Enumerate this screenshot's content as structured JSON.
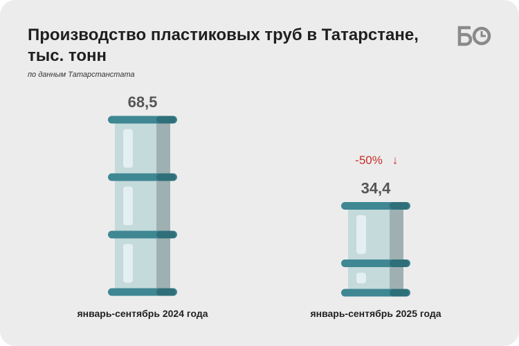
{
  "header": {
    "title_line1": "Производство пластиковых труб в Татарстане,",
    "title_line2": "тыс. тонн",
    "source": "по данным Татарстанстата"
  },
  "logo": {
    "icon": "bo-logo-icon",
    "color": "#8a8a8a"
  },
  "colors": {
    "pipe_body": "#c4dadb",
    "pipe_shadow": "#9fb0b2",
    "pipe_highlight": "#e3eff0",
    "ring": "#3e8793",
    "ring_dark": "#2f6f79",
    "change": "#c8302a"
  },
  "chart_data": {
    "type": "bar",
    "categories": [
      "январь-сентябрь 2024 года",
      "январь-сентябрь 2025 года"
    ],
    "values": [
      68.5,
      34.4
    ],
    "value_labels": [
      "68,5",
      "34,4"
    ],
    "change_label": "-50%",
    "change_arrow": "↓",
    "title": "Производство пластиковых труб в Татарстане, тыс. тонн",
    "subtitle": "по данным Татарстанстата",
    "xlabel": "",
    "ylabel": "",
    "ylim": [
      0,
      70
    ],
    "grid": false,
    "legend": "none"
  }
}
